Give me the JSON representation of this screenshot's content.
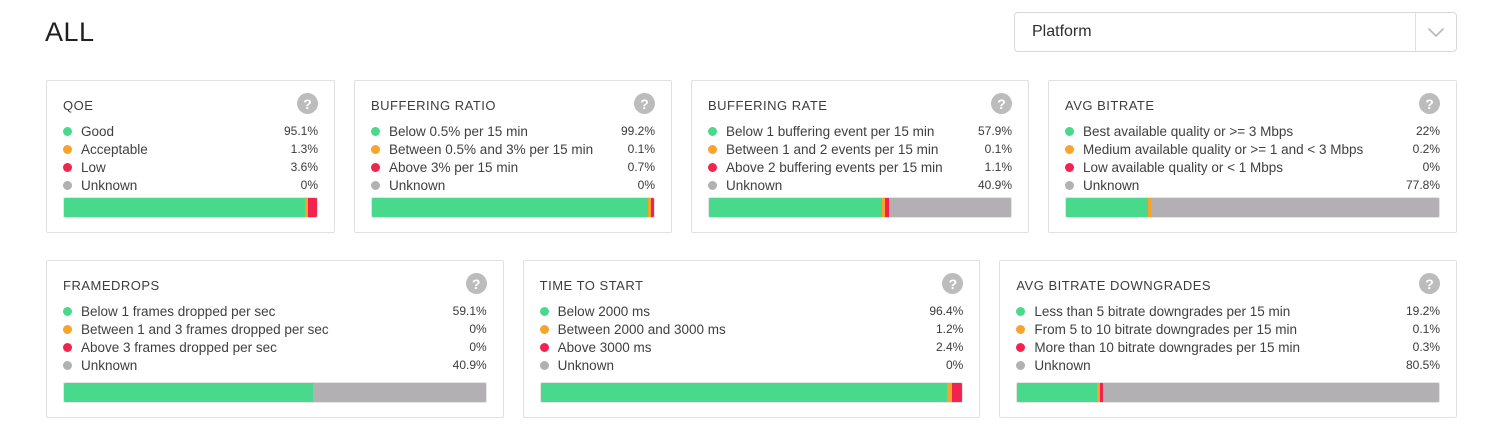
{
  "page": {
    "title": "ALL"
  },
  "filter": {
    "label": "Platform"
  },
  "icons": {
    "help_glyph": "?"
  },
  "colors": {
    "green": "#49d98d",
    "orange": "#f8a32b",
    "red": "#f32350",
    "gray": "#b3b0b3"
  },
  "cards": [
    {
      "row": 1,
      "title": "QOE",
      "legend": [
        {
          "label": "Good",
          "value": "95.1%",
          "pct": 95.1,
          "color": "green"
        },
        {
          "label": "Acceptable",
          "value": "1.3%",
          "pct": 1.3,
          "color": "orange"
        },
        {
          "label": "Low",
          "value": "3.6%",
          "pct": 3.6,
          "color": "red"
        },
        {
          "label": "Unknown",
          "value": "0%",
          "pct": 0,
          "color": "gray"
        }
      ]
    },
    {
      "row": 1,
      "title": "BUFFERING RATIO",
      "legend": [
        {
          "label": "Below 0.5% per 15 min",
          "value": "99.2%",
          "pct": 99.2,
          "color": "green"
        },
        {
          "label": "Between 0.5% and 3% per 15 min",
          "value": "0.1%",
          "pct": 0.1,
          "color": "orange"
        },
        {
          "label": "Above 3% per 15 min",
          "value": "0.7%",
          "pct": 0.7,
          "color": "red"
        },
        {
          "label": "Unknown",
          "value": "0%",
          "pct": 0,
          "color": "gray"
        }
      ]
    },
    {
      "row": 1,
      "title": "BUFFERING RATE",
      "legend": [
        {
          "label": "Below 1 buffering event per 15 min",
          "value": "57.9%",
          "pct": 57.9,
          "color": "green"
        },
        {
          "label": "Between 1 and 2 events per 15 min",
          "value": "0.1%",
          "pct": 0.1,
          "color": "orange"
        },
        {
          "label": "Above 2 buffering events per 15 min",
          "value": "1.1%",
          "pct": 1.1,
          "color": "red"
        },
        {
          "label": "Unknown",
          "value": "40.9%",
          "pct": 40.9,
          "color": "gray"
        }
      ]
    },
    {
      "row": 1,
      "title": "AVG BITRATE",
      "legend": [
        {
          "label": "Best available quality or >= 3 Mbps",
          "value": "22%",
          "pct": 22,
          "color": "green"
        },
        {
          "label": "Medium available quality or >= 1 and < 3 Mbps",
          "value": "0.2%",
          "pct": 0.2,
          "color": "orange"
        },
        {
          "label": "Low available quality or < 1 Mbps",
          "value": "0%",
          "pct": 0,
          "color": "red"
        },
        {
          "label": "Unknown",
          "value": "77.8%",
          "pct": 77.8,
          "color": "gray"
        }
      ]
    },
    {
      "row": 2,
      "title": "FRAMEDROPS",
      "legend": [
        {
          "label": "Below 1 frames dropped per sec",
          "value": "59.1%",
          "pct": 59.1,
          "color": "green"
        },
        {
          "label": "Between 1 and 3 frames dropped per sec",
          "value": "0%",
          "pct": 0,
          "color": "orange"
        },
        {
          "label": "Above 3 frames dropped per sec",
          "value": "0%",
          "pct": 0,
          "color": "red"
        },
        {
          "label": "Unknown",
          "value": "40.9%",
          "pct": 40.9,
          "color": "gray"
        }
      ]
    },
    {
      "row": 2,
      "title": "TIME TO START",
      "legend": [
        {
          "label": "Below 2000 ms",
          "value": "96.4%",
          "pct": 96.4,
          "color": "green"
        },
        {
          "label": "Between 2000 and 3000 ms",
          "value": "1.2%",
          "pct": 1.2,
          "color": "orange"
        },
        {
          "label": "Above 3000 ms",
          "value": "2.4%",
          "pct": 2.4,
          "color": "red"
        },
        {
          "label": "Unknown",
          "value": "0%",
          "pct": 0,
          "color": "gray"
        }
      ]
    },
    {
      "row": 2,
      "title": "AVG BITRATE DOWNGRADES",
      "legend": [
        {
          "label": "Less than 5 bitrate downgrades per 15 min",
          "value": "19.2%",
          "pct": 19.2,
          "color": "green"
        },
        {
          "label": "From 5 to 10 bitrate downgrades per 15 min",
          "value": "0.1%",
          "pct": 0.1,
          "color": "orange"
        },
        {
          "label": "More than 10 bitrate downgrades per 15 min",
          "value": "0.3%",
          "pct": 0.3,
          "color": "red"
        },
        {
          "label": "Unknown",
          "value": "80.5%",
          "pct": 80.5,
          "color": "gray"
        }
      ]
    }
  ]
}
